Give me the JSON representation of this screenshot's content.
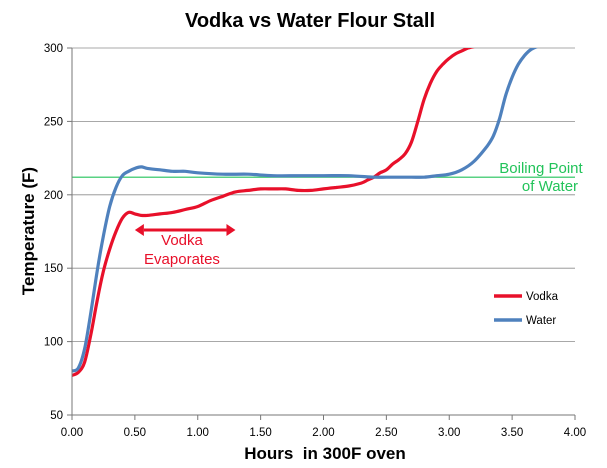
{
  "chart_data": {
    "type": "line",
    "title": "Vodka vs Water Flour Stall",
    "xlabel": "Hours  in 300F oven",
    "ylabel": "Temperature (F)",
    "xlim": [
      0,
      4
    ],
    "ylim": [
      50,
      300
    ],
    "x_ticks": [
      "0.00",
      "0.50",
      "1.00",
      "1.50",
      "2.00",
      "2.50",
      "3.00",
      "3.50",
      "4.00"
    ],
    "y_ticks": [
      "50",
      "100",
      "150",
      "200",
      "250",
      "300"
    ],
    "grid": "horizontal",
    "legend": "right",
    "reference_line": {
      "label_line1": "Boiling Point",
      "label_line2": "of Water",
      "y": 212,
      "color": "#22c35a"
    },
    "annotation": {
      "label_line1": "Vodka",
      "label_line2": "Evaporates",
      "x_start": 0.5,
      "x_end": 1.3,
      "y": 176,
      "color": "#e8102a"
    },
    "series": [
      {
        "name": "Vodka",
        "color": "#e8102a",
        "points": [
          [
            0.0,
            77
          ],
          [
            0.05,
            79
          ],
          [
            0.1,
            86
          ],
          [
            0.15,
            105
          ],
          [
            0.2,
            128
          ],
          [
            0.25,
            148
          ],
          [
            0.3,
            163
          ],
          [
            0.35,
            175
          ],
          [
            0.4,
            184
          ],
          [
            0.45,
            188
          ],
          [
            0.5,
            187
          ],
          [
            0.55,
            186
          ],
          [
            0.6,
            186
          ],
          [
            0.7,
            187
          ],
          [
            0.8,
            188
          ],
          [
            0.9,
            190
          ],
          [
            1.0,
            192
          ],
          [
            1.1,
            196
          ],
          [
            1.2,
            199
          ],
          [
            1.3,
            202
          ],
          [
            1.4,
            203
          ],
          [
            1.5,
            204
          ],
          [
            1.6,
            204
          ],
          [
            1.7,
            204
          ],
          [
            1.8,
            203
          ],
          [
            1.9,
            203
          ],
          [
            2.0,
            204
          ],
          [
            2.1,
            205
          ],
          [
            2.2,
            206
          ],
          [
            2.3,
            208
          ],
          [
            2.35,
            210
          ],
          [
            2.4,
            212
          ],
          [
            2.45,
            215
          ],
          [
            2.5,
            217
          ],
          [
            2.55,
            221
          ],
          [
            2.6,
            224
          ],
          [
            2.65,
            228
          ],
          [
            2.7,
            236
          ],
          [
            2.75,
            250
          ],
          [
            2.8,
            265
          ],
          [
            2.85,
            276
          ],
          [
            2.9,
            284
          ],
          [
            2.95,
            289
          ],
          [
            3.0,
            293
          ],
          [
            3.05,
            296
          ],
          [
            3.1,
            298
          ],
          [
            3.15,
            300
          ],
          [
            3.2,
            301
          ]
        ]
      },
      {
        "name": "Water",
        "color": "#4f81bd",
        "points": [
          [
            0.0,
            80
          ],
          [
            0.05,
            82
          ],
          [
            0.1,
            95
          ],
          [
            0.15,
            120
          ],
          [
            0.2,
            148
          ],
          [
            0.25,
            172
          ],
          [
            0.3,
            192
          ],
          [
            0.35,
            205
          ],
          [
            0.4,
            213
          ],
          [
            0.45,
            216
          ],
          [
            0.5,
            218
          ],
          [
            0.55,
            219
          ],
          [
            0.6,
            218
          ],
          [
            0.7,
            217
          ],
          [
            0.8,
            216
          ],
          [
            0.9,
            216
          ],
          [
            1.0,
            215
          ],
          [
            1.2,
            214
          ],
          [
            1.4,
            214
          ],
          [
            1.6,
            213
          ],
          [
            1.8,
            213
          ],
          [
            2.0,
            213
          ],
          [
            2.2,
            213
          ],
          [
            2.4,
            212
          ],
          [
            2.5,
            212
          ],
          [
            2.6,
            212
          ],
          [
            2.7,
            212
          ],
          [
            2.8,
            212
          ],
          [
            2.9,
            213
          ],
          [
            3.0,
            214
          ],
          [
            3.1,
            217
          ],
          [
            3.2,
            223
          ],
          [
            3.3,
            233
          ],
          [
            3.35,
            240
          ],
          [
            3.4,
            252
          ],
          [
            3.45,
            268
          ],
          [
            3.5,
            280
          ],
          [
            3.55,
            289
          ],
          [
            3.6,
            295
          ],
          [
            3.65,
            299
          ],
          [
            3.7,
            301
          ]
        ]
      }
    ]
  }
}
